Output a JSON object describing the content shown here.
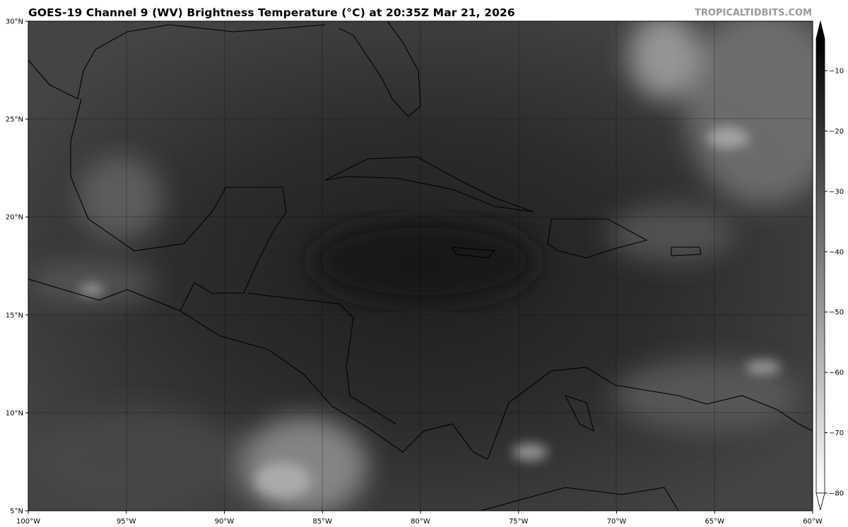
{
  "title": "GOES-19 Channel 9 (WV) Brightness Temperature (°C) at 20:35Z Mar 21, 2026",
  "watermark": "TROPICALTIDBITS.COM",
  "map": {
    "lon_range": [
      -100,
      -60
    ],
    "lat_range": [
      5,
      30
    ],
    "lat_labels": [
      "5°N",
      "10°N",
      "15°N",
      "20°N",
      "25°N",
      "30°N"
    ],
    "lon_labels": [
      "100°W",
      "95°W",
      "90°W",
      "85°W",
      "80°W",
      "75°W",
      "70°W",
      "65°W",
      "60°W"
    ]
  },
  "colorbar": {
    "ticks": [
      "−10",
      "−20",
      "−30",
      "−40",
      "−50",
      "−60",
      "−70",
      "−80"
    ],
    "range": [
      -80,
      -5
    ],
    "colormap": "grayscale (warm=black, cold=white)",
    "extend": "both"
  }
}
